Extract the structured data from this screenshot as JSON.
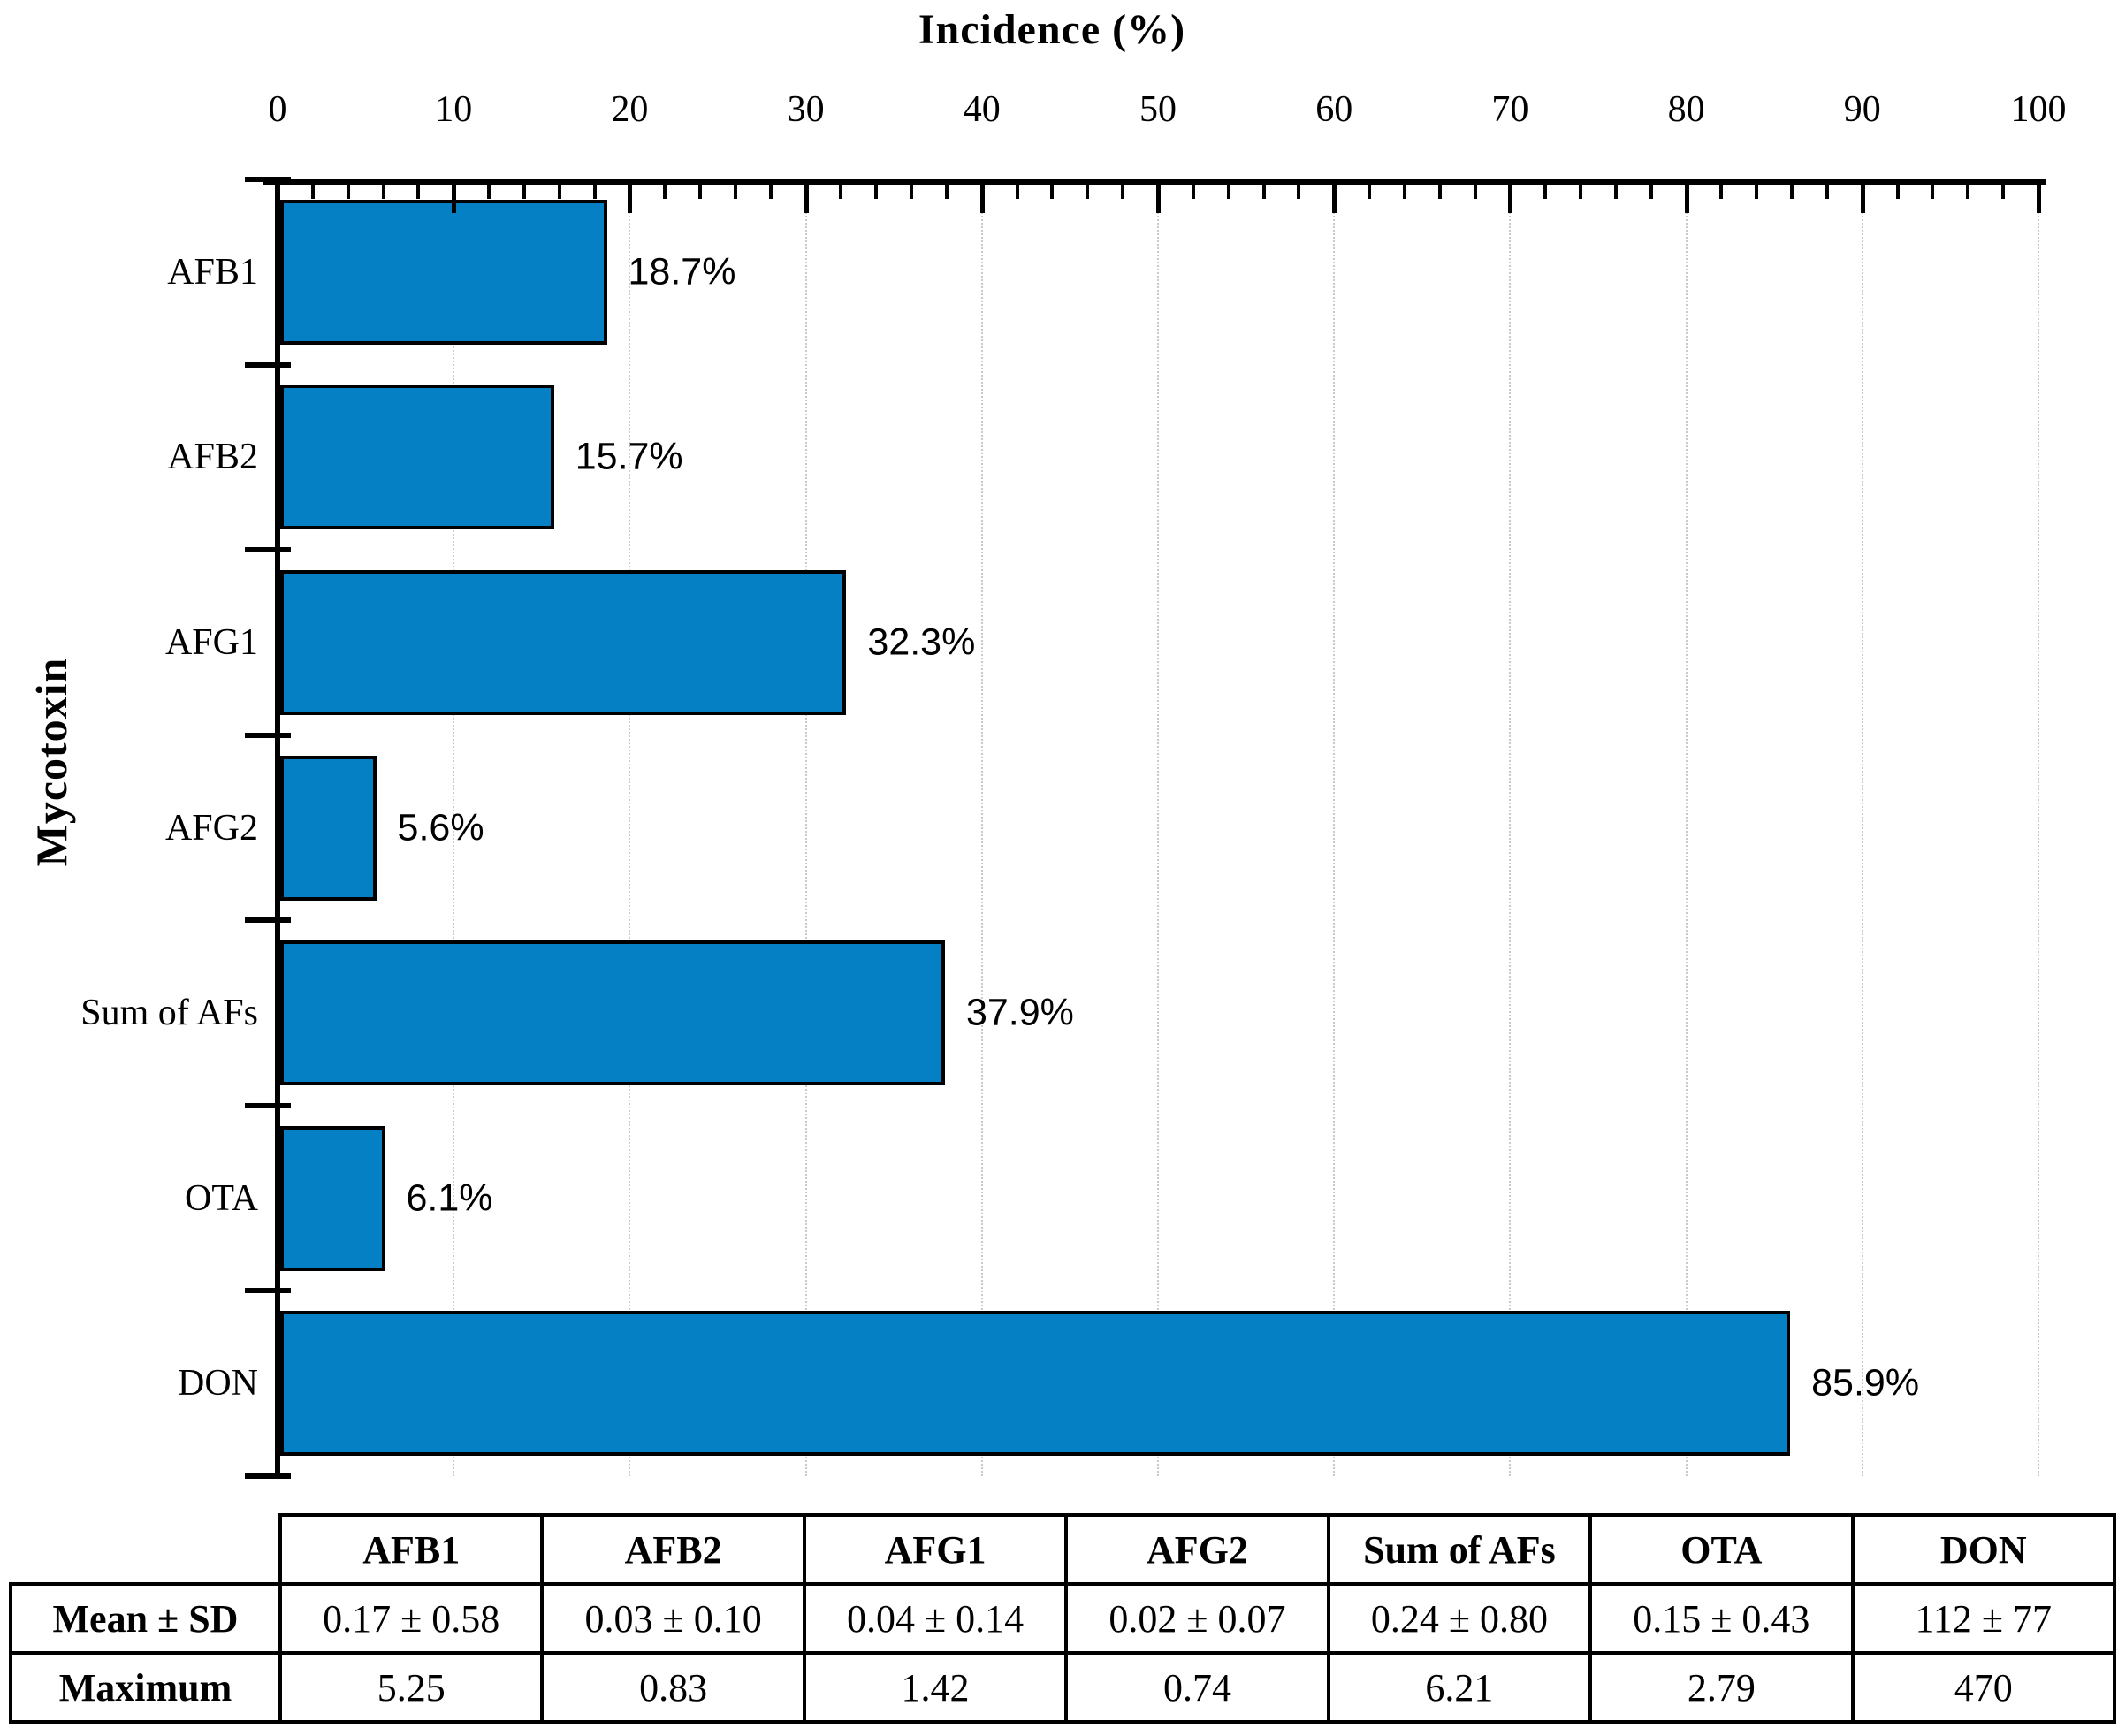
{
  "chart_data": {
    "type": "bar",
    "orientation": "horizontal",
    "title": "Incidence (%)",
    "xlabel": "Incidence (%)",
    "ylabel": "Mycotoxin",
    "categories": [
      "AFB1",
      "AFB2",
      "AFG1",
      "AFG2",
      "Sum of AFs",
      "OTA",
      "DON"
    ],
    "values": [
      18.7,
      15.7,
      32.3,
      5.6,
      37.9,
      6.1,
      85.9
    ],
    "value_labels": [
      "18.7%",
      "15.7%",
      "32.3%",
      "5.6%",
      "37.9%",
      "6.1%",
      "85.9%"
    ],
    "xlim": [
      0,
      100
    ],
    "x_ticks": [
      0,
      10,
      20,
      30,
      40,
      50,
      60,
      70,
      80,
      90,
      100
    ],
    "minor_tick_step": 2,
    "grid": "vertical dotted lines at major ticks",
    "legend_position": "none",
    "bar_color": "#0580C5",
    "bar_border_color": "#000000"
  },
  "table": {
    "corner_label": "",
    "columns": [
      "AFB1",
      "AFB2",
      "AFG1",
      "AFG2",
      "Sum of AFs",
      "OTA",
      "DON"
    ],
    "rows": [
      {
        "label": "Mean ± SD",
        "values": [
          "0.17 ± 0.58",
          "0.03 ± 0.10",
          "0.04 ± 0.14",
          "0.02 ± 0.07",
          "0.24 ± 0.80",
          "0.15 ± 0.43",
          "112 ± 77"
        ]
      },
      {
        "label": "Maximum",
        "values": [
          "5.25",
          "0.83",
          "1.42",
          "0.74",
          "6.21",
          "2.79",
          "470"
        ]
      }
    ]
  }
}
